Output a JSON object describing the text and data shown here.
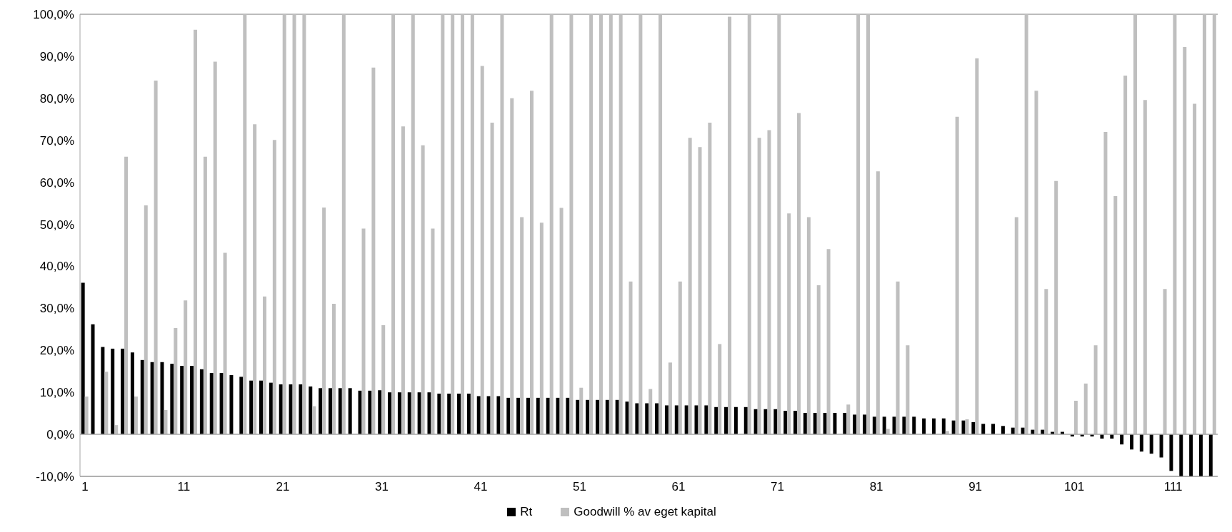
{
  "chart_data": {
    "type": "bar",
    "categories": [
      "1",
      null,
      null,
      null,
      null,
      null,
      null,
      null,
      null,
      null,
      "11",
      null,
      null,
      null,
      null,
      null,
      null,
      null,
      null,
      null,
      "21",
      null,
      null,
      null,
      null,
      null,
      null,
      null,
      null,
      null,
      "31",
      null,
      null,
      null,
      null,
      null,
      null,
      null,
      null,
      null,
      "41",
      null,
      null,
      null,
      null,
      null,
      null,
      null,
      null,
      null,
      "51",
      null,
      null,
      null,
      null,
      null,
      null,
      null,
      null,
      null,
      "61",
      null,
      null,
      null,
      null,
      null,
      null,
      null,
      null,
      null,
      "71",
      null,
      null,
      null,
      null,
      null,
      null,
      null,
      null,
      null,
      "81",
      null,
      null,
      null,
      null,
      null,
      null,
      null,
      null,
      null,
      "91",
      null,
      null,
      null,
      null,
      null,
      null,
      null,
      null,
      null,
      "101",
      null,
      null,
      null,
      null,
      null,
      null,
      null,
      null,
      null,
      "111",
      null,
      null,
      null,
      null
    ],
    "series": [
      {
        "name": "Rt",
        "color": "#000000",
        "values": [
          36.1,
          26.2,
          20.8,
          20.4,
          20.4,
          19.5,
          17.7,
          17.2,
          17.2,
          16.8,
          16.3,
          16.3,
          15.5,
          14.6,
          14.6,
          14.1,
          13.7,
          12.8,
          12.8,
          12.3,
          11.9,
          11.9,
          11.9,
          11.4,
          11.0,
          11.0,
          11.0,
          11.0,
          10.4,
          10.4,
          10.5,
          10.0,
          10.0,
          10.0,
          10.0,
          10.0,
          9.7,
          9.7,
          9.7,
          9.7,
          9.1,
          9.1,
          9.1,
          8.7,
          8.7,
          8.7,
          8.7,
          8.7,
          8.7,
          8.7,
          8.2,
          8.2,
          8.2,
          8.2,
          8.2,
          7.8,
          7.4,
          7.4,
          7.4,
          6.9,
          6.9,
          6.9,
          6.9,
          6.9,
          6.5,
          6.5,
          6.5,
          6.5,
          6.0,
          6.0,
          6.0,
          5.6,
          5.6,
          5.1,
          5.1,
          5.1,
          5.1,
          5.1,
          4.7,
          4.7,
          4.2,
          4.2,
          4.2,
          4.2,
          4.2,
          3.8,
          3.8,
          3.8,
          3.3,
          3.3,
          2.9,
          2.5,
          2.5,
          2.0,
          1.6,
          1.6,
          1.1,
          1.1,
          0.6,
          0.6,
          -0.5,
          -0.5,
          -0.5,
          -1.0,
          -1.0,
          -2.4,
          -3.6,
          -4.1,
          -4.6,
          -5.5,
          -8.7,
          -10,
          -10,
          -10,
          -10
        ]
      },
      {
        "name": "Goodwill % av eget kapital",
        "color": "#bfbfbf",
        "values": [
          9.0,
          0,
          14.9,
          2.2,
          66.1,
          9.0,
          54.5,
          84.2,
          5.8,
          25.3,
          31.9,
          96.3,
          66.1,
          88.7,
          43.2,
          0,
          100,
          73.8,
          32.8,
          70.1,
          100,
          100,
          100,
          6.7,
          54.0,
          31.1,
          100,
          0,
          49.0,
          87.3,
          26.0,
          100,
          73.3,
          100,
          68.8,
          49.0,
          100,
          100,
          100,
          100,
          87.7,
          74.2,
          100,
          80.0,
          51.7,
          81.8,
          50.4,
          100,
          53.9,
          100,
          11.1,
          100,
          100,
          100,
          100,
          36.4,
          100,
          10.8,
          100,
          17.1,
          36.4,
          70.6,
          68.4,
          74.2,
          21.5,
          99.4,
          null,
          100,
          70.6,
          72.4,
          100,
          52.6,
          76.5,
          51.7,
          35.5,
          44.1,
          0,
          7.1,
          100,
          100,
          62.6,
          1.3,
          36.4,
          21.2,
          0,
          null,
          0,
          0.8,
          75.6,
          3.6,
          89.5,
          null,
          0,
          0,
          51.7,
          100,
          81.8,
          34.6,
          60.3,
          0,
          8.0,
          12.1,
          21.2,
          72.0,
          56.7,
          85.4,
          100,
          79.6,
          null,
          34.6,
          100,
          92.2,
          78.7,
          100,
          100
        ]
      }
    ],
    "ylim": [
      -10,
      100
    ],
    "yticks": [
      {
        "value": -10,
        "label": "-10,0%"
      },
      {
        "value": 0,
        "label": "0,0%"
      },
      {
        "value": 10,
        "label": "10,0%"
      },
      {
        "value": 20,
        "label": "20,0%"
      },
      {
        "value": 30,
        "label": "30,0%"
      },
      {
        "value": 40,
        "label": "40,0%"
      },
      {
        "value": 50,
        "label": "50,0%"
      },
      {
        "value": 60,
        "label": "60,0%"
      },
      {
        "value": 70,
        "label": "70,0%"
      },
      {
        "value": 80,
        "label": "80,0%"
      },
      {
        "value": 90,
        "label": "90,0%"
      },
      {
        "value": 100,
        "label": "100,0%"
      }
    ],
    "grid": "y",
    "legend": "bottom"
  }
}
